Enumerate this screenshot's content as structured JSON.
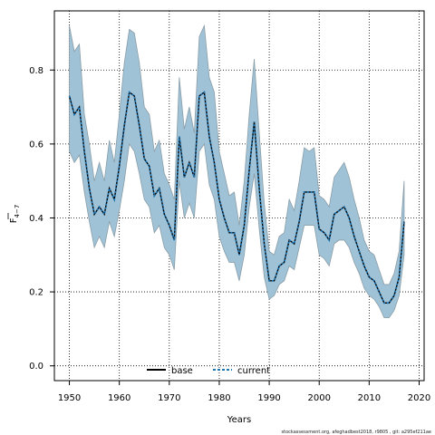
{
  "chart_data": {
    "type": "line",
    "xlabel": "Years",
    "ylabel": "F",
    "ylabel_subscript": "4−7",
    "xlim": [
      1947,
      2021
    ],
    "ylim": [
      -0.04,
      0.96
    ],
    "xticks": [
      1950,
      1960,
      1970,
      1980,
      1990,
      2000,
      2010,
      2020
    ],
    "yticks": [
      0.0,
      0.2,
      0.4,
      0.6,
      0.8
    ],
    "ytick_labels": [
      "0.0",
      "0.2",
      "0.4",
      "0.6",
      "0.8"
    ],
    "grid": true,
    "legend_position": "bottom-center",
    "band_color": "#9fc2d6",
    "band_edge_color": "#8a9ea8",
    "x": [
      1950,
      1951,
      1952,
      1953,
      1954,
      1955,
      1956,
      1957,
      1958,
      1959,
      1960,
      1961,
      1962,
      1963,
      1964,
      1965,
      1966,
      1967,
      1968,
      1969,
      1970,
      1971,
      1972,
      1973,
      1974,
      1975,
      1976,
      1977,
      1978,
      1979,
      1980,
      1981,
      1982,
      1983,
      1984,
      1985,
      1986,
      1987,
      1988,
      1989,
      1990,
      1991,
      1992,
      1993,
      1994,
      1995,
      1996,
      1997,
      1998,
      1999,
      2000,
      2001,
      2002,
      2003,
      2004,
      2005,
      2006,
      2007,
      2008,
      2009,
      2010,
      2011,
      2012,
      2013,
      2014,
      2015,
      2016,
      2017
    ],
    "series": [
      {
        "name": "base",
        "color": "#000000",
        "style": "solid",
        "values": [
          0.73,
          0.68,
          0.7,
          0.58,
          0.48,
          0.41,
          0.43,
          0.41,
          0.48,
          0.45,
          0.54,
          0.65,
          0.74,
          0.73,
          0.65,
          0.56,
          0.54,
          0.46,
          0.48,
          0.41,
          0.38,
          0.34,
          0.62,
          0.51,
          0.55,
          0.51,
          0.73,
          0.74,
          0.62,
          0.55,
          0.45,
          0.4,
          0.36,
          0.36,
          0.3,
          0.38,
          0.53,
          0.66,
          0.48,
          0.33,
          0.23,
          0.23,
          0.27,
          0.28,
          0.34,
          0.33,
          0.39,
          0.47,
          0.47,
          0.47,
          0.37,
          0.36,
          0.34,
          0.41,
          0.42,
          0.43,
          0.4,
          0.35,
          0.31,
          0.27,
          0.24,
          0.23,
          0.2,
          0.17,
          0.17,
          0.19,
          0.24,
          0.39
        ]
      },
      {
        "name": "current",
        "color": "#1f77b4",
        "style": "dashed",
        "values": [
          0.73,
          0.68,
          0.7,
          0.58,
          0.48,
          0.41,
          0.43,
          0.41,
          0.48,
          0.45,
          0.54,
          0.65,
          0.74,
          0.73,
          0.65,
          0.56,
          0.54,
          0.46,
          0.48,
          0.41,
          0.38,
          0.34,
          0.62,
          0.51,
          0.55,
          0.51,
          0.73,
          0.74,
          0.62,
          0.55,
          0.45,
          0.4,
          0.36,
          0.36,
          0.3,
          0.38,
          0.53,
          0.66,
          0.48,
          0.33,
          0.23,
          0.23,
          0.27,
          0.28,
          0.34,
          0.33,
          0.39,
          0.47,
          0.47,
          0.47,
          0.37,
          0.36,
          0.34,
          0.41,
          0.42,
          0.43,
          0.4,
          0.35,
          0.31,
          0.27,
          0.24,
          0.23,
          0.2,
          0.17,
          0.17,
          0.19,
          0.24,
          0.39
        ]
      }
    ],
    "band_upper": [
      0.92,
      0.85,
      0.87,
      0.68,
      0.6,
      0.5,
      0.55,
      0.5,
      0.61,
      0.55,
      0.68,
      0.82,
      0.91,
      0.9,
      0.82,
      0.7,
      0.68,
      0.58,
      0.61,
      0.52,
      0.49,
      0.45,
      0.78,
      0.64,
      0.7,
      0.63,
      0.89,
      0.92,
      0.78,
      0.74,
      0.58,
      0.52,
      0.46,
      0.47,
      0.38,
      0.5,
      0.68,
      0.83,
      0.63,
      0.44,
      0.31,
      0.3,
      0.35,
      0.36,
      0.45,
      0.42,
      0.5,
      0.59,
      0.58,
      0.59,
      0.46,
      0.45,
      0.43,
      0.51,
      0.53,
      0.55,
      0.51,
      0.45,
      0.4,
      0.34,
      0.31,
      0.3,
      0.26,
      0.22,
      0.22,
      0.25,
      0.31,
      0.5
    ],
    "band_lower": [
      0.58,
      0.55,
      0.57,
      0.47,
      0.39,
      0.32,
      0.35,
      0.32,
      0.39,
      0.35,
      0.42,
      0.5,
      0.6,
      0.58,
      0.52,
      0.45,
      0.43,
      0.36,
      0.38,
      0.32,
      0.3,
      0.26,
      0.5,
      0.4,
      0.44,
      0.4,
      0.58,
      0.6,
      0.49,
      0.45,
      0.35,
      0.31,
      0.28,
      0.28,
      0.23,
      0.3,
      0.43,
      0.52,
      0.37,
      0.24,
      0.18,
      0.19,
      0.22,
      0.23,
      0.27,
      0.26,
      0.32,
      0.38,
      0.38,
      0.38,
      0.3,
      0.29,
      0.27,
      0.33,
      0.34,
      0.34,
      0.32,
      0.28,
      0.25,
      0.21,
      0.19,
      0.18,
      0.16,
      0.13,
      0.13,
      0.15,
      0.19,
      0.3
    ]
  },
  "footer": "stockassessment.org, afeghadbest2018, r9805 , git: a295ef211ae"
}
